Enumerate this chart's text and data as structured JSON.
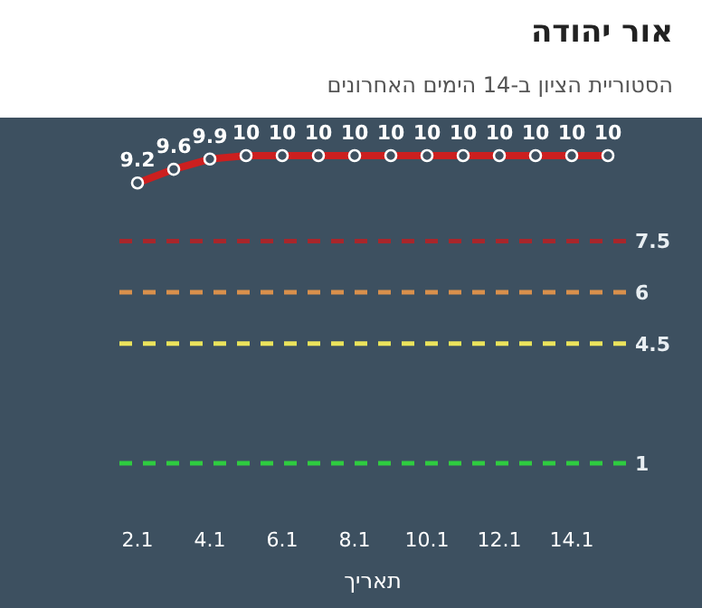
{
  "chart_data": {
    "type": "line",
    "title": "אור יהודה",
    "subtitle": "הסטוריית הציון ב-14 הימים האחרונים",
    "xlabel": "תאריך",
    "categories": [
      "2.1",
      null,
      "4.1",
      null,
      "6.1",
      null,
      "8.1",
      null,
      "10.1",
      null,
      "12.1",
      null,
      "14.1",
      null
    ],
    "series": [
      {
        "color": "#cc1f1f",
        "values": [
          9.2,
          9.6,
          9.9,
          10,
          10,
          10,
          10,
          10,
          10,
          10,
          10,
          10,
          10,
          10
        ]
      }
    ],
    "data_labels": true,
    "marker": "circle",
    "line_style": "solid",
    "ref_lines": [
      {
        "axis": "y",
        "value": 7.5,
        "label": "7.5",
        "color": "#a8262b",
        "line_style": "dashed"
      },
      {
        "axis": "y",
        "value": 6,
        "label": "6",
        "color": "#d9904c",
        "line_style": "dashed"
      },
      {
        "axis": "y",
        "value": 4.5,
        "label": "4.5",
        "color": "#ebe35c",
        "line_style": "dashed"
      },
      {
        "axis": "y",
        "value": 1,
        "label": "1",
        "color": "#2ecc40",
        "line_style": "dashed"
      }
    ]
  }
}
